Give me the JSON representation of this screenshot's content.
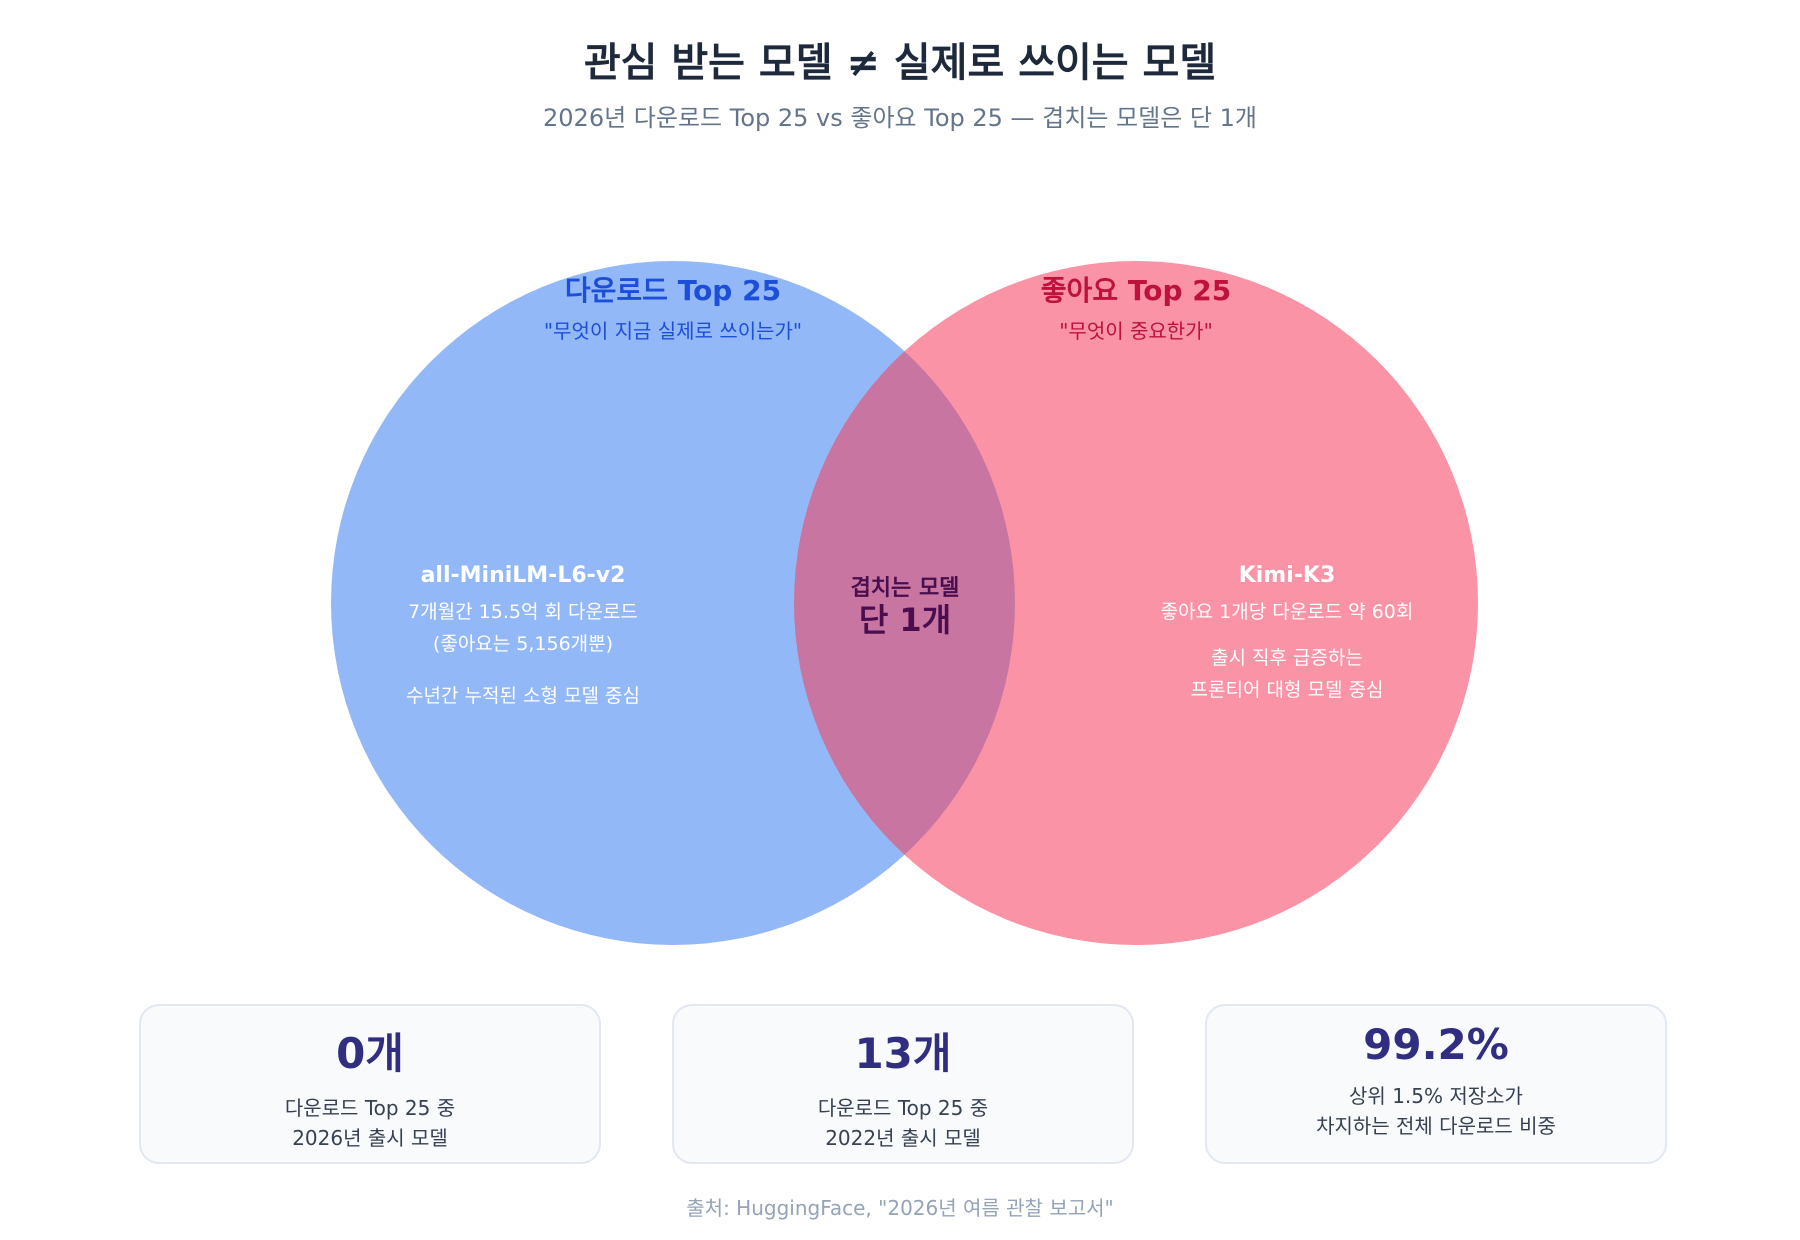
{
  "title": "관심 받는 모델 ≠ 실제로 쓰이는 모델",
  "subtitle": "2026년 다운로드 Top 25 vs 좋아요 Top 25 — 겹치는 모델은 단 1개",
  "venn": {
    "left": {
      "title": "다운로드 Top 25",
      "quote": "\"무엇이 지금 실제로 쓰이는가\"",
      "model": "all-MiniLM-L6-v2",
      "line1": "7개월간 15.5억 회 다운로드",
      "line2": "(좋아요는 5,156개뿐)",
      "line3": "수년간 누적된 소형 모델 중심",
      "color": "#93b8f8",
      "title_color": "#1d4ed8"
    },
    "right": {
      "title": "좋아요 Top 25",
      "quote": "\"무엇이 중요한가\"",
      "model": "Kimi-K3",
      "line1": "좋아요 1개당 다운로드 약 60회",
      "line2": "출시 직후 급증하는",
      "line3": "프론티어 대형 모델 중심",
      "color": "#f993a5",
      "title_color": "#be123c"
    },
    "overlap": {
      "label": "겹치는 모델",
      "value": "단 1개",
      "color": "#c875a2",
      "text_color": "#4a0e4e"
    }
  },
  "cards": [
    {
      "value": "0개",
      "label": "다운로드 Top 25 중\n2026년 출시 모델"
    },
    {
      "value": "13개",
      "label": "다운로드 Top 25 중\n2022년 출시 모델"
    },
    {
      "value": "99.2%",
      "label": "상위 1.5% 저장소가\n차지하는 전체 다운로드 비중"
    }
  ],
  "source": "출처: HuggingFace, \"2026년 여름 관찰 보고서\""
}
